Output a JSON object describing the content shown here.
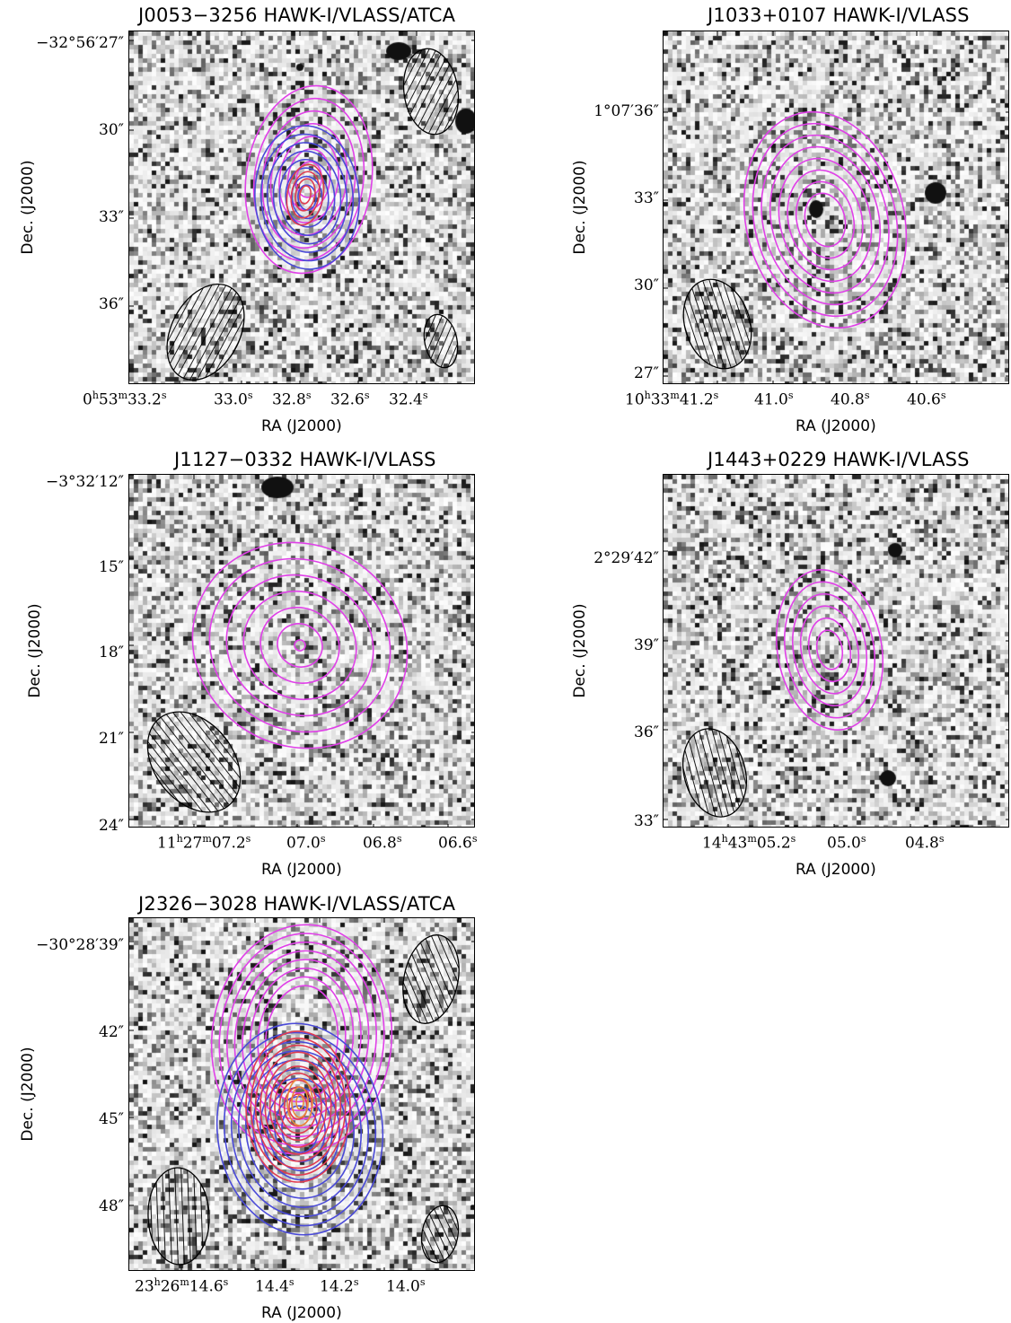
{
  "panels": [
    {
      "id": "p1",
      "title": "J0053−3256 HAWK-I/VLASS/ATCA",
      "ylabel": "Dec. (J2000)",
      "xlabel": "RA (J2000)",
      "yticks": [
        "−32°56′27″",
        "30″",
        "33″",
        "36″"
      ],
      "xticks": [
        {
          "h": "0",
          "hu": "h",
          "m": "53",
          "mu": "m",
          "s": "33.2",
          "su": "s"
        },
        {
          "s": "33.0",
          "su": "s"
        },
        {
          "s": "32.8",
          "su": "s"
        },
        {
          "s": "32.6",
          "su": "s"
        },
        {
          "s": "32.4",
          "su": "s"
        }
      ],
      "contours": [
        "magenta",
        "blue",
        "red"
      ]
    },
    {
      "id": "p2",
      "title": "J1033+0107 HAWK-I/VLASS",
      "ylabel": "Dec. (J2000)",
      "xlabel": "RA (J2000)",
      "yticks": [
        "1°07′36″",
        "33″",
        "30″",
        "27″"
      ],
      "xticks": [
        {
          "h": "10",
          "hu": "h",
          "m": "33",
          "mu": "m",
          "s": "41.2",
          "su": "s"
        },
        {
          "s": "41.0",
          "su": "s"
        },
        {
          "s": "40.8",
          "su": "s"
        },
        {
          "s": "40.6",
          "su": "s"
        }
      ],
      "contours": [
        "magenta"
      ]
    },
    {
      "id": "p3",
      "title": "J1127−0332 HAWK-I/VLASS",
      "ylabel": "Dec. (J2000)",
      "xlabel": "RA (J2000)",
      "yticks": [
        "−3°32′12″",
        "15″",
        "18″",
        "21″",
        "24″"
      ],
      "xticks": [
        {
          "h": "11",
          "hu": "h",
          "m": "27",
          "mu": "m",
          "s": "07.2",
          "su": "s"
        },
        {
          "s": "07.0",
          "su": "s"
        },
        {
          "s": "06.8",
          "su": "s"
        },
        {
          "s": "06.6",
          "su": "s"
        }
      ],
      "contours": [
        "magenta"
      ]
    },
    {
      "id": "p4",
      "title": "J1443+0229 HAWK-I/VLASS",
      "ylabel": "Dec. (J2000)",
      "xlabel": "RA (J2000)",
      "yticks": [
        "2°29′42″",
        "39″",
        "36″",
        "33″"
      ],
      "xticks": [
        {
          "h": "14",
          "hu": "h",
          "m": "43",
          "mu": "m",
          "s": "05.2",
          "su": "s"
        },
        {
          "s": "05.0",
          "su": "s"
        },
        {
          "s": "04.8",
          "su": "s"
        }
      ],
      "contours": [
        "magenta"
      ]
    },
    {
      "id": "p5",
      "title": "J2326−3028 HAWK-I/VLASS/ATCA",
      "ylabel": "Dec. (J2000)",
      "xlabel": "RA (J2000)",
      "yticks": [
        "−30°28′39″",
        "42″",
        "45″",
        "48″"
      ],
      "xticks": [
        {
          "h": "23",
          "hu": "h",
          "m": "26",
          "mu": "m",
          "s": "14.6",
          "su": "s"
        },
        {
          "s": "14.4",
          "su": "s"
        },
        {
          "s": "14.2",
          "su": "s"
        },
        {
          "s": "14.0",
          "su": "s"
        }
      ],
      "contours": [
        "magenta",
        "blue",
        "red"
      ]
    }
  ],
  "colors": {
    "magenta": "#e040e8",
    "blue": "#4a4ad8",
    "red": "#e03c50",
    "orange": "#e8883a"
  }
}
